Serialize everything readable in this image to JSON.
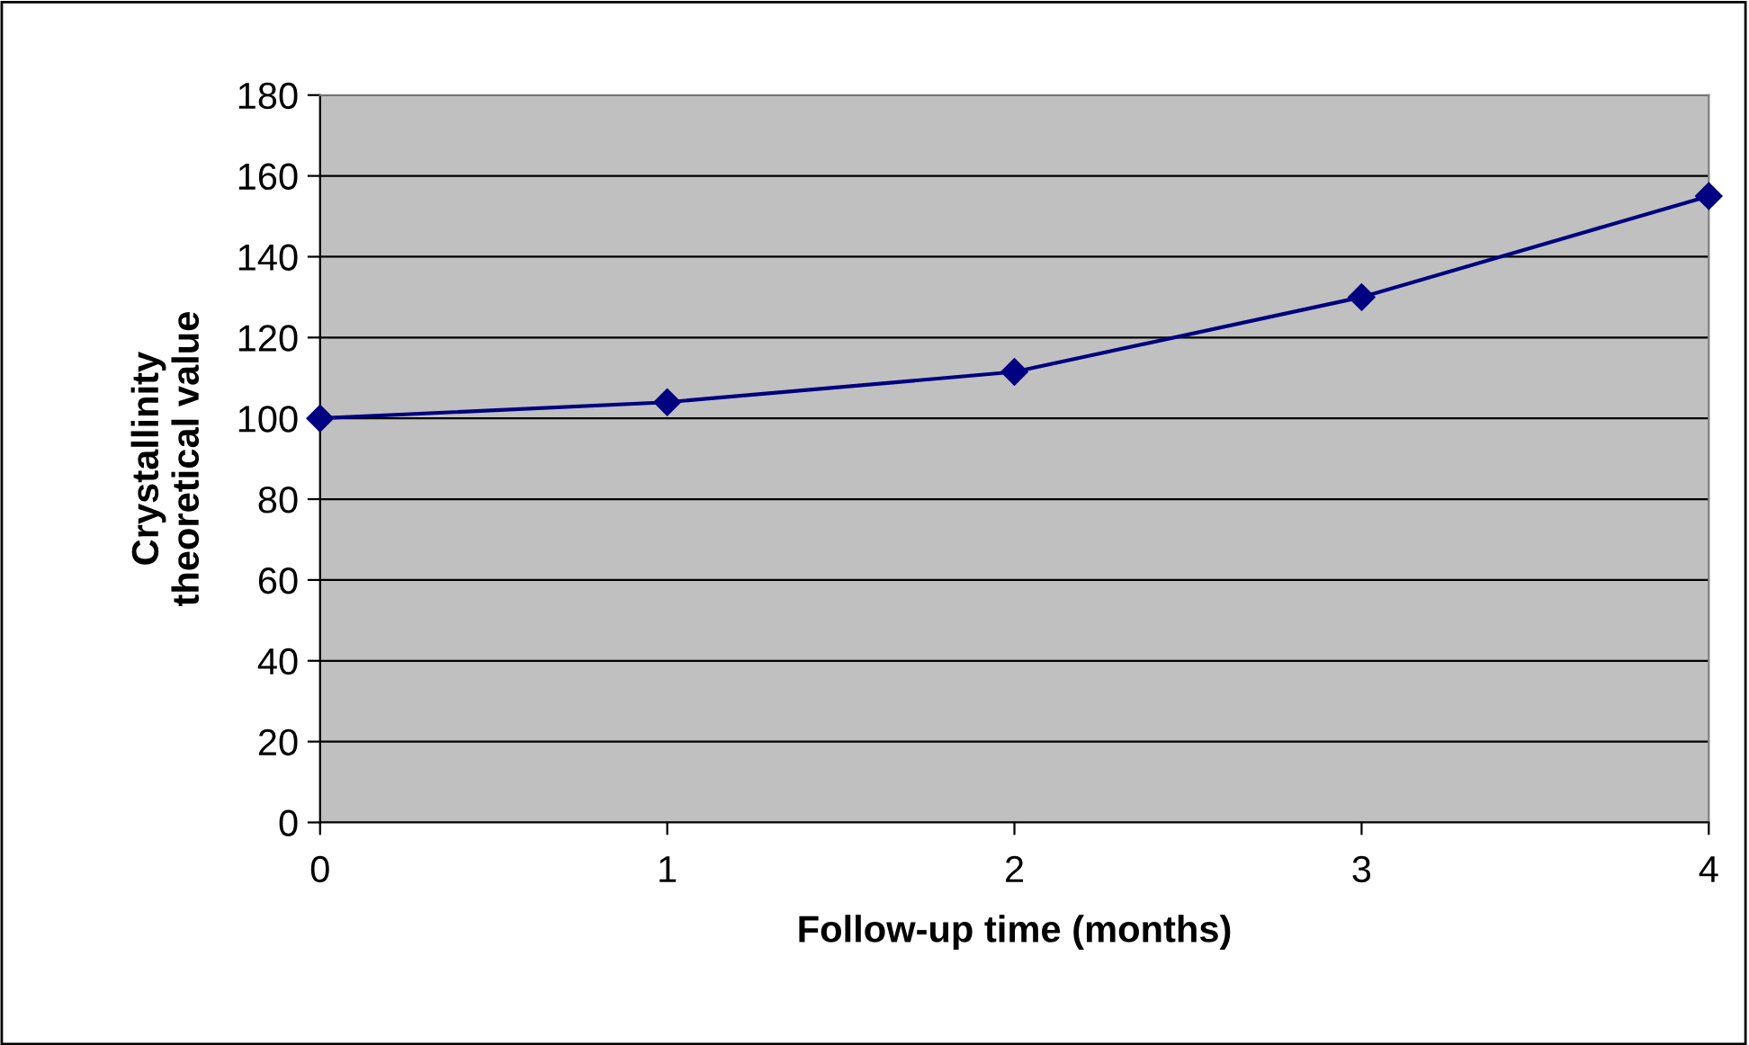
{
  "chart_data": {
    "type": "line",
    "xlabel": "Follow-up time (months)",
    "ylabel": "Crystallinity\ntheoretical value",
    "x": [
      0,
      1,
      2,
      3,
      4
    ],
    "series": [
      {
        "color": "#000080",
        "values": [
          100,
          104,
          111.5,
          130,
          155
        ]
      }
    ],
    "xlim": [
      0,
      4
    ],
    "xticks": [
      0,
      1,
      2,
      3,
      4
    ],
    "ylim": [
      0,
      180
    ],
    "yticks": [
      0,
      20,
      40,
      60,
      80,
      100,
      120,
      140,
      160,
      180
    ],
    "grid": "y",
    "marker": "diamond",
    "line_style": "solid"
  }
}
